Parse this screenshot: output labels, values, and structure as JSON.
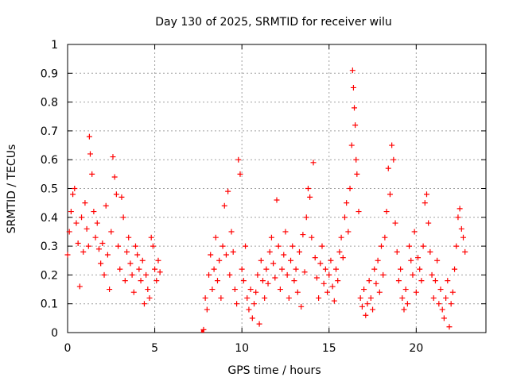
{
  "chart_data": {
    "type": "scatter",
    "title": "Day 130 of 2025, SRMTID for receiver wilu",
    "xlabel": "GPS time / hours",
    "ylabel": "SRMTID / TECUs",
    "xlim": [
      0,
      24
    ],
    "ylim": [
      0,
      1
    ],
    "xticks": [
      0,
      5,
      10,
      15,
      20
    ],
    "xtick_labels": [
      "0",
      "5",
      "10",
      "15",
      "20"
    ],
    "yticks": [
      0,
      0.1,
      0.2,
      0.3,
      0.4,
      0.5,
      0.6,
      0.7,
      0.8,
      0.9,
      1
    ],
    "ytick_labels": [
      "0",
      "0.1",
      "0.2",
      "0.3",
      "0.4",
      "0.5",
      "0.6",
      "0.7",
      "0.8",
      "0.9",
      "1"
    ],
    "grid": true,
    "marker": "plus",
    "marker_color": "#ff0000",
    "series": [
      {
        "name": "SRMTID",
        "points": [
          [
            0.0,
            0.27
          ],
          [
            0.1,
            0.35
          ],
          [
            0.2,
            0.42
          ],
          [
            0.3,
            0.48
          ],
          [
            0.4,
            0.5
          ],
          [
            0.5,
            0.38
          ],
          [
            0.6,
            0.31
          ],
          [
            0.7,
            0.16
          ],
          [
            0.8,
            0.4
          ],
          [
            0.9,
            0.28
          ],
          [
            1.0,
            0.45
          ],
          [
            1.1,
            0.36
          ],
          [
            1.2,
            0.3
          ],
          [
            1.25,
            0.68
          ],
          [
            1.3,
            0.62
          ],
          [
            1.4,
            0.55
          ],
          [
            1.5,
            0.42
          ],
          [
            1.6,
            0.33
          ],
          [
            1.7,
            0.38
          ],
          [
            1.8,
            0.29
          ],
          [
            1.9,
            0.24
          ],
          [
            2.0,
            0.31
          ],
          [
            2.1,
            0.2
          ],
          [
            2.2,
            0.44
          ],
          [
            2.3,
            0.27
          ],
          [
            2.4,
            0.15
          ],
          [
            2.5,
            0.35
          ],
          [
            2.6,
            0.61
          ],
          [
            2.7,
            0.54
          ],
          [
            2.8,
            0.48
          ],
          [
            2.9,
            0.3
          ],
          [
            3.0,
            0.22
          ],
          [
            3.1,
            0.47
          ],
          [
            3.2,
            0.4
          ],
          [
            3.3,
            0.18
          ],
          [
            3.4,
            0.28
          ],
          [
            3.5,
            0.33
          ],
          [
            3.6,
            0.24
          ],
          [
            3.7,
            0.2
          ],
          [
            3.8,
            0.14
          ],
          [
            3.9,
            0.3
          ],
          [
            4.0,
            0.27
          ],
          [
            4.1,
            0.22
          ],
          [
            4.2,
            0.18
          ],
          [
            4.3,
            0.25
          ],
          [
            4.4,
            0.1
          ],
          [
            4.5,
            0.2
          ],
          [
            4.6,
            0.15
          ],
          [
            4.7,
            0.12
          ],
          [
            4.8,
            0.33
          ],
          [
            4.9,
            0.3
          ],
          [
            5.0,
            0.22
          ],
          [
            5.1,
            0.18
          ],
          [
            5.2,
            0.25
          ],
          [
            5.3,
            0.21
          ],
          [
            7.75,
            0.0
          ],
          [
            7.8,
            0.01
          ],
          [
            7.9,
            0.12
          ],
          [
            8.0,
            0.08
          ],
          [
            8.1,
            0.2
          ],
          [
            8.2,
            0.27
          ],
          [
            8.3,
            0.15
          ],
          [
            8.4,
            0.22
          ],
          [
            8.5,
            0.33
          ],
          [
            8.6,
            0.18
          ],
          [
            8.7,
            0.25
          ],
          [
            8.8,
            0.12
          ],
          [
            8.9,
            0.3
          ],
          [
            9.0,
            0.44
          ],
          [
            9.1,
            0.27
          ],
          [
            9.2,
            0.49
          ],
          [
            9.3,
            0.2
          ],
          [
            9.4,
            0.35
          ],
          [
            9.5,
            0.28
          ],
          [
            9.6,
            0.15
          ],
          [
            9.7,
            0.1
          ],
          [
            9.8,
            0.6
          ],
          [
            9.9,
            0.55
          ],
          [
            10.0,
            0.22
          ],
          [
            10.1,
            0.18
          ],
          [
            10.2,
            0.3
          ],
          [
            10.3,
            0.12
          ],
          [
            10.4,
            0.08
          ],
          [
            10.5,
            0.15
          ],
          [
            10.6,
            0.05
          ],
          [
            10.7,
            0.1
          ],
          [
            10.8,
            0.14
          ],
          [
            10.9,
            0.2
          ],
          [
            11.0,
            0.03
          ],
          [
            11.1,
            0.25
          ],
          [
            11.2,
            0.18
          ],
          [
            11.3,
            0.12
          ],
          [
            11.4,
            0.22
          ],
          [
            11.5,
            0.17
          ],
          [
            11.6,
            0.28
          ],
          [
            11.7,
            0.33
          ],
          [
            11.8,
            0.24
          ],
          [
            11.9,
            0.19
          ],
          [
            12.0,
            0.46
          ],
          [
            12.1,
            0.3
          ],
          [
            12.2,
            0.15
          ],
          [
            12.3,
            0.22
          ],
          [
            12.4,
            0.27
          ],
          [
            12.5,
            0.35
          ],
          [
            12.6,
            0.2
          ],
          [
            12.7,
            0.12
          ],
          [
            12.8,
            0.25
          ],
          [
            12.9,
            0.3
          ],
          [
            13.0,
            0.18
          ],
          [
            13.1,
            0.22
          ],
          [
            13.2,
            0.14
          ],
          [
            13.3,
            0.28
          ],
          [
            13.4,
            0.09
          ],
          [
            13.5,
            0.34
          ],
          [
            13.6,
            0.21
          ],
          [
            13.7,
            0.4
          ],
          [
            13.8,
            0.5
          ],
          [
            13.9,
            0.47
          ],
          [
            14.0,
            0.33
          ],
          [
            14.1,
            0.59
          ],
          [
            14.2,
            0.26
          ],
          [
            14.3,
            0.19
          ],
          [
            14.4,
            0.12
          ],
          [
            14.5,
            0.24
          ],
          [
            14.6,
            0.3
          ],
          [
            14.7,
            0.17
          ],
          [
            14.8,
            0.22
          ],
          [
            14.9,
            0.14
          ],
          [
            15.0,
            0.2
          ],
          [
            15.1,
            0.25
          ],
          [
            15.2,
            0.16
          ],
          [
            15.3,
            0.11
          ],
          [
            15.4,
            0.22
          ],
          [
            15.5,
            0.18
          ],
          [
            15.6,
            0.28
          ],
          [
            15.7,
            0.33
          ],
          [
            15.8,
            0.26
          ],
          [
            15.9,
            0.4
          ],
          [
            16.0,
            0.45
          ],
          [
            16.1,
            0.35
          ],
          [
            16.2,
            0.5
          ],
          [
            16.3,
            0.65
          ],
          [
            16.35,
            0.91
          ],
          [
            16.4,
            0.85
          ],
          [
            16.45,
            0.78
          ],
          [
            16.5,
            0.72
          ],
          [
            16.55,
            0.6
          ],
          [
            16.6,
            0.55
          ],
          [
            16.7,
            0.42
          ],
          [
            16.8,
            0.12
          ],
          [
            16.9,
            0.09
          ],
          [
            17.0,
            0.15
          ],
          [
            17.1,
            0.06
          ],
          [
            17.2,
            0.1
          ],
          [
            17.3,
            0.18
          ],
          [
            17.4,
            0.12
          ],
          [
            17.5,
            0.08
          ],
          [
            17.6,
            0.22
          ],
          [
            17.7,
            0.17
          ],
          [
            17.8,
            0.25
          ],
          [
            17.9,
            0.14
          ],
          [
            18.0,
            0.3
          ],
          [
            18.1,
            0.2
          ],
          [
            18.2,
            0.33
          ],
          [
            18.3,
            0.42
          ],
          [
            18.4,
            0.57
          ],
          [
            18.5,
            0.48
          ],
          [
            18.6,
            0.65
          ],
          [
            18.7,
            0.6
          ],
          [
            18.8,
            0.38
          ],
          [
            18.9,
            0.28
          ],
          [
            19.0,
            0.18
          ],
          [
            19.1,
            0.22
          ],
          [
            19.2,
            0.12
          ],
          [
            19.3,
            0.08
          ],
          [
            19.4,
            0.15
          ],
          [
            19.5,
            0.1
          ],
          [
            19.6,
            0.3
          ],
          [
            19.7,
            0.25
          ],
          [
            19.8,
            0.2
          ],
          [
            19.9,
            0.35
          ],
          [
            20.0,
            0.14
          ],
          [
            20.1,
            0.26
          ],
          [
            20.2,
            0.22
          ],
          [
            20.3,
            0.18
          ],
          [
            20.4,
            0.3
          ],
          [
            20.5,
            0.45
          ],
          [
            20.6,
            0.48
          ],
          [
            20.7,
            0.38
          ],
          [
            20.8,
            0.28
          ],
          [
            20.9,
            0.2
          ],
          [
            21.0,
            0.12
          ],
          [
            21.1,
            0.18
          ],
          [
            21.2,
            0.25
          ],
          [
            21.3,
            0.1
          ],
          [
            21.4,
            0.15
          ],
          [
            21.5,
            0.08
          ],
          [
            21.6,
            0.05
          ],
          [
            21.7,
            0.12
          ],
          [
            21.8,
            0.18
          ],
          [
            21.9,
            0.02
          ],
          [
            22.0,
            0.1
          ],
          [
            22.1,
            0.14
          ],
          [
            22.2,
            0.22
          ],
          [
            22.3,
            0.3
          ],
          [
            22.4,
            0.4
          ],
          [
            22.5,
            0.43
          ],
          [
            22.6,
            0.36
          ],
          [
            22.7,
            0.33
          ],
          [
            22.8,
            0.28
          ]
        ]
      }
    ]
  }
}
